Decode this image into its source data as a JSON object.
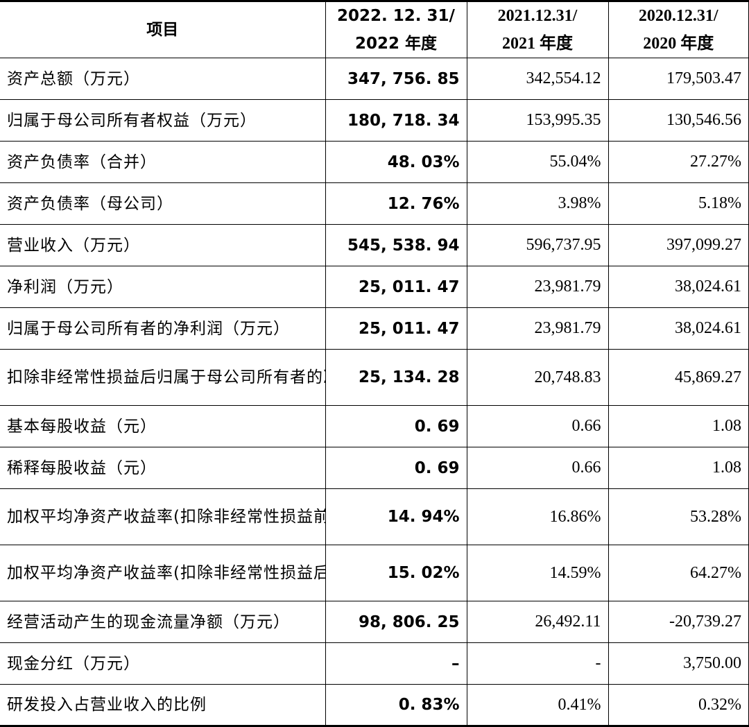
{
  "table": {
    "headers": {
      "item": "项目",
      "y2022_line1": "2022. 12. 31/",
      "y2022_line2": "2022 年度",
      "y2021_line1": "2021.12.31/",
      "y2021_line2": "2021 年度",
      "y2020_line1": "2020.12.31/",
      "y2020_line2": "2020 年度"
    },
    "rows": [
      {
        "label": "资产总额（万元）",
        "v2022": "347, 756. 85",
        "v2021": "342,554.12",
        "v2020": "179,503.47"
      },
      {
        "label": "归属于母公司所有者权益（万元）",
        "v2022": "180, 718. 34",
        "v2021": "153,995.35",
        "v2020": "130,546.56"
      },
      {
        "label": "资产负债率（合并）",
        "v2022": "48. 03%",
        "v2021": "55.04%",
        "v2020": "27.27%"
      },
      {
        "label": "资产负债率（母公司）",
        "v2022": "12. 76%",
        "v2021": "3.98%",
        "v2020": "5.18%"
      },
      {
        "label": "营业收入（万元）",
        "v2022": "545, 538. 94",
        "v2021": "596,737.95",
        "v2020": "397,099.27"
      },
      {
        "label": "净利润（万元）",
        "v2022": "25, 011. 47",
        "v2021": "23,981.79",
        "v2020": "38,024.61"
      },
      {
        "label": "归属于母公司所有者的净利润（万元）",
        "v2022": "25, 011. 47",
        "v2021": "23,981.79",
        "v2020": "38,024.61"
      },
      {
        "label": "扣除非经常性损益后归属于母公司所有者的净利润（万元）",
        "v2022": "25, 134. 28",
        "v2021": "20,748.83",
        "v2020": "45,869.27"
      },
      {
        "label": "基本每股收益（元）",
        "v2022": "0. 69",
        "v2021": "0.66",
        "v2020": "1.08"
      },
      {
        "label": "稀释每股收益（元）",
        "v2022": "0. 69",
        "v2021": "0.66",
        "v2020": "1.08"
      },
      {
        "label": "加权平均净资产收益率(扣除非经常性损益前)",
        "v2022": "14. 94%",
        "v2021": "16.86%",
        "v2020": "53.28%"
      },
      {
        "label": "加权平均净资产收益率(扣除非经常性损益后)",
        "v2022": "15. 02%",
        "v2021": "14.59%",
        "v2020": "64.27%"
      },
      {
        "label": "经营活动产生的现金流量净额（万元）",
        "v2022": "98, 806. 25",
        "v2021": "26,492.11",
        "v2020": "-20,739.27"
      },
      {
        "label": "现金分红（万元）",
        "v2022": "–",
        "v2021": "-",
        "v2020": "3,750.00"
      },
      {
        "label": "研发投入占营业收入的比例",
        "v2022": "0. 83%",
        "v2021": "0.41%",
        "v2020": "0.32%"
      }
    ]
  }
}
